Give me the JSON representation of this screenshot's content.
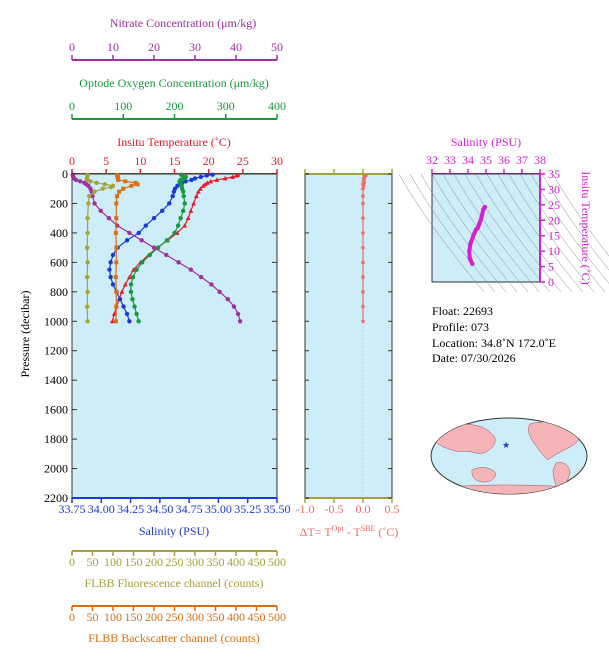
{
  "colors": {
    "nitrate": "#a0309f",
    "oxygen": "#179a3e",
    "temperature": "#e8192c",
    "salinity": "#1d3ad6",
    "fluorescence": "#a6a13b",
    "backscatter": "#db6d12",
    "delta_t": "#f26b6b",
    "inset_salinity": "#d51fd0",
    "plot_bg": "#cdeef8"
  },
  "info": {
    "float": "Float:  22693",
    "profile": "Profile:  073",
    "location": "Location:  34.8˚N  172.0˚E",
    "date": "Date:  07/30/2026"
  },
  "chart_data": [
    {
      "type": "line",
      "panel": "main-profile",
      "ylabel": "Pressure (decibar)",
      "ylim": [
        2200,
        0
      ],
      "yticks": [
        "0",
        "200",
        "400",
        "600",
        "800",
        "1000",
        "1200",
        "1400",
        "1600",
        "1800",
        "2000",
        "2200"
      ],
      "grid": false,
      "axes": {
        "nitrate": {
          "label": "Nitrate Concentration (μm/kg)",
          "range": [
            0,
            50
          ],
          "ticks": [
            "0",
            "10",
            "20",
            "30",
            "40",
            "50"
          ]
        },
        "oxygen": {
          "label": "Optode Oxygen Concentration (μm/kg)",
          "range": [
            0,
            400
          ],
          "ticks": [
            "0",
            "100",
            "200",
            "300",
            "400"
          ]
        },
        "temperature": {
          "label": "Insitu Temperature (˚C)",
          "range": [
            0,
            30
          ],
          "ticks": [
            "0",
            "5",
            "10",
            "15",
            "20",
            "25",
            "30"
          ]
        },
        "salinity": {
          "label": "Salinity (PSU)",
          "range": [
            33.75,
            35.5
          ],
          "ticks": [
            "33.75",
            "34.00",
            "34.25",
            "34.50",
            "34.75",
            "35.00",
            "35.25",
            "35.50"
          ]
        },
        "fluorescence": {
          "label": "FLBB Fluorescence channel (counts)",
          "range": [
            0,
            500
          ],
          "ticks": [
            "0",
            "50",
            "100",
            "150",
            "200",
            "250",
            "300",
            "350",
            "400",
            "450",
            "500"
          ]
        },
        "backscatter": {
          "label": "FLBB Backscatter channel (counts)",
          "range": [
            0,
            500
          ],
          "ticks": [
            "0",
            "50",
            "100",
            "150",
            "200",
            "250",
            "300",
            "350",
            "400",
            "450",
            "500"
          ]
        }
      },
      "series": [
        {
          "key": "temperature",
          "pressure": [
            5,
            10,
            20,
            30,
            40,
            50,
            60,
            70,
            80,
            100,
            120,
            150,
            200,
            250,
            300,
            350,
            400,
            450,
            500,
            550,
            600,
            650,
            700,
            750,
            800,
            850,
            900,
            950,
            1000
          ],
          "values": [
            24.3,
            24.1,
            23.5,
            22.4,
            21.2,
            20.3,
            19.8,
            19.5,
            19.2,
            18.8,
            18.5,
            18.2,
            17.8,
            17.4,
            17.0,
            16.5,
            15.4,
            14.0,
            12.5,
            11.2,
            10.0,
            9.0,
            8.4,
            7.8,
            7.3,
            6.9,
            6.5,
            6.2,
            5.9
          ]
        },
        {
          "key": "salinity",
          "pressure": [
            5,
            10,
            20,
            30,
            40,
            50,
            60,
            70,
            80,
            100,
            120,
            150,
            200,
            250,
            300,
            350,
            400,
            450,
            500,
            550,
            600,
            650,
            700,
            750,
            800,
            850,
            900,
            950,
            1000
          ],
          "values": [
            34.95,
            34.9,
            34.85,
            34.8,
            34.77,
            34.72,
            34.69,
            34.67,
            34.65,
            34.63,
            34.62,
            34.61,
            34.58,
            34.52,
            34.45,
            34.38,
            34.32,
            34.22,
            34.14,
            34.1,
            34.08,
            34.07,
            34.08,
            34.1,
            34.13,
            34.16,
            34.19,
            34.22,
            34.24
          ]
        },
        {
          "key": "oxygen",
          "pressure": [
            5,
            10,
            20,
            30,
            40,
            50,
            60,
            70,
            80,
            100,
            120,
            150,
            200,
            250,
            300,
            350,
            400,
            450,
            500,
            550,
            600,
            650,
            700,
            750,
            800,
            850,
            900,
            950,
            1000
          ],
          "values": [
            213,
            215,
            222,
            218,
            212,
            210,
            212,
            212,
            214,
            215,
            217,
            218,
            220,
            217,
            212,
            207,
            200,
            185,
            168,
            152,
            137,
            126,
            119,
            115,
            115,
            118,
            122,
            126,
            130
          ]
        },
        {
          "key": "nitrate",
          "pressure": [
            5,
            10,
            20,
            30,
            40,
            50,
            60,
            70,
            80,
            100,
            120,
            150,
            200,
            250,
            300,
            350,
            400,
            450,
            500,
            550,
            600,
            650,
            700,
            750,
            800,
            850,
            900,
            950,
            1000
          ],
          "values": [
            0.2,
            0.2,
            0.3,
            0.5,
            1.0,
            2.0,
            3.0,
            3.5,
            4.0,
            4.5,
            4.8,
            5.0,
            5.5,
            7.0,
            9.0,
            11.0,
            14.0,
            17.0,
            20.0,
            23.0,
            26.0,
            29.0,
            31.5,
            34.0,
            36.0,
            38.0,
            39.5,
            40.5,
            41.0
          ]
        },
        {
          "key": "fluorescence",
          "pressure": [
            5,
            10,
            20,
            30,
            40,
            50,
            60,
            70,
            80,
            90,
            100,
            120,
            150,
            200,
            300,
            400,
            500,
            600,
            700,
            800,
            900,
            1000
          ],
          "values": [
            38,
            38,
            37,
            36,
            37,
            45,
            60,
            80,
            100,
            95,
            75,
            55,
            42,
            40,
            38,
            38,
            37,
            38,
            37,
            38,
            37,
            38
          ]
        },
        {
          "key": "backscatter",
          "pressure": [
            5,
            10,
            20,
            30,
            40,
            50,
            60,
            70,
            80,
            100,
            120,
            150,
            200,
            300,
            400,
            500,
            600,
            700,
            800,
            900,
            1000
          ],
          "values": [
            110,
            110,
            112,
            112,
            113,
            130,
            155,
            160,
            145,
            125,
            115,
            110,
            108,
            108,
            107,
            108,
            108,
            107,
            108,
            108,
            107
          ]
        }
      ]
    },
    {
      "type": "line",
      "panel": "delta-t",
      "xlabel": "ΔT= Tᴼᵖᵗ - Tˢᴮᴱ (˚C)",
      "xlim": [
        -1.0,
        0.5
      ],
      "xticks": [
        "-1.0",
        "-0.5",
        "0.0",
        "0.5"
      ],
      "ylim": [
        2200,
        0
      ],
      "series": [
        {
          "name": "",
          "pressure": [
            5,
            10,
            20,
            30,
            40,
            50,
            60,
            70,
            80,
            100,
            150,
            200,
            300,
            400,
            500,
            600,
            700,
            800,
            900,
            1000
          ],
          "values": [
            0.02,
            0.05,
            0.03,
            0.01,
            0.02,
            0.01,
            0.02,
            0.0,
            0.01,
            0.0,
            0.0,
            0.0,
            0.0,
            0.0,
            0.0,
            0.0,
            0.0,
            0.0,
            0.0,
            0.0
          ]
        }
      ]
    },
    {
      "type": "line",
      "panel": "ts-diagram",
      "xlabel": "Salinity (PSU)",
      "ylabel": "Insitu Temperature (˚C)",
      "xlim": [
        32,
        38
      ],
      "ylim": [
        0,
        35
      ],
      "xticks": [
        "32",
        "33",
        "34",
        "35",
        "36",
        "37",
        "38"
      ],
      "yticks": [
        "0",
        "5",
        "10",
        "15",
        "20",
        "25",
        "30",
        "35"
      ],
      "series": [
        {
          "name": "",
          "salinity": [
            34.94,
            34.85,
            34.72,
            34.62,
            34.55,
            34.45,
            34.32,
            34.14,
            34.07,
            34.1,
            34.13,
            34.24
          ],
          "temperature": [
            24.3,
            23.5,
            20.3,
            18.8,
            17.6,
            17.0,
            15.4,
            12.5,
            10.0,
            7.8,
            7.3,
            5.9
          ]
        }
      ]
    }
  ]
}
